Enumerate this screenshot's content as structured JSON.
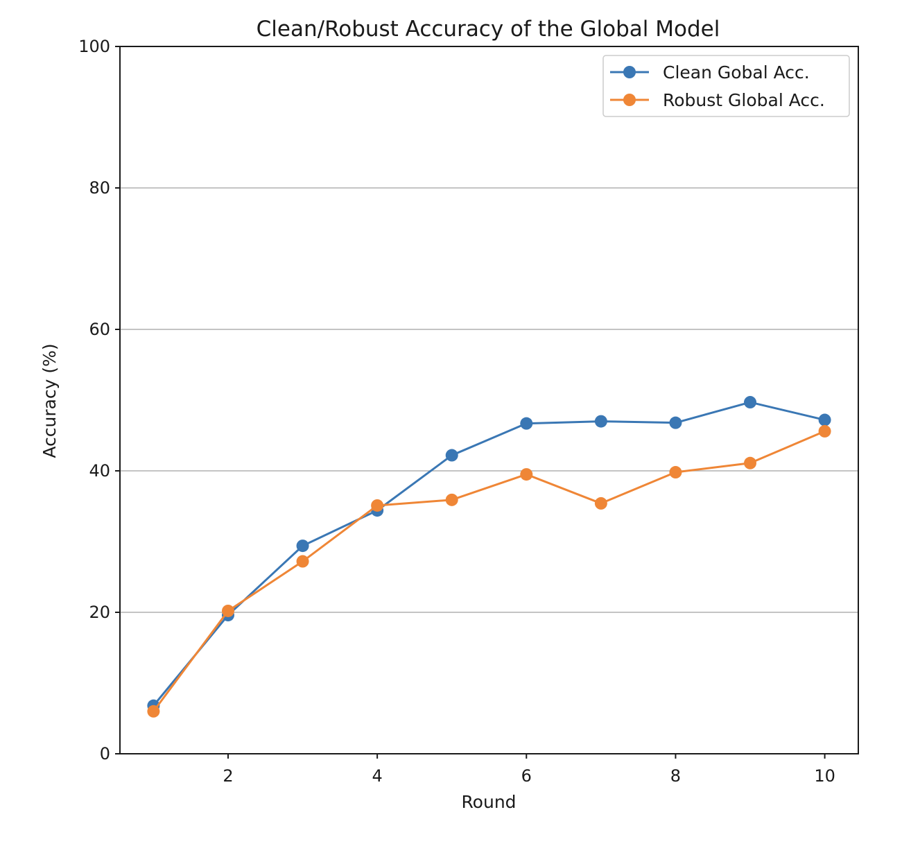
{
  "chart_data": {
    "type": "line",
    "title": "Clean/Robust Accuracy of the Global Model",
    "xlabel": "Round",
    "ylabel": "Accuracy (%)",
    "xlim": [
      0.55,
      10.45
    ],
    "ylim": [
      0,
      100
    ],
    "xticks": [
      2,
      4,
      6,
      8,
      10
    ],
    "yticks": [
      0,
      20,
      40,
      60,
      80,
      100
    ],
    "grid": "horizontal",
    "legend_position": "top-right",
    "x": [
      1,
      2,
      3,
      4,
      5,
      6,
      7,
      8,
      9,
      10
    ],
    "series": [
      {
        "name": "Clean Gobal Acc.",
        "color": "#3a77b4",
        "marker": "circle",
        "values": [
          6.8,
          19.6,
          29.4,
          34.4,
          42.2,
          46.7,
          47.0,
          46.8,
          49.7,
          47.2
        ]
      },
      {
        "name": "Robust Global Acc.",
        "color": "#ef8636",
        "marker": "circle",
        "values": [
          6.0,
          20.2,
          27.2,
          35.1,
          35.9,
          39.5,
          35.4,
          39.8,
          41.1,
          45.6
        ]
      }
    ]
  }
}
